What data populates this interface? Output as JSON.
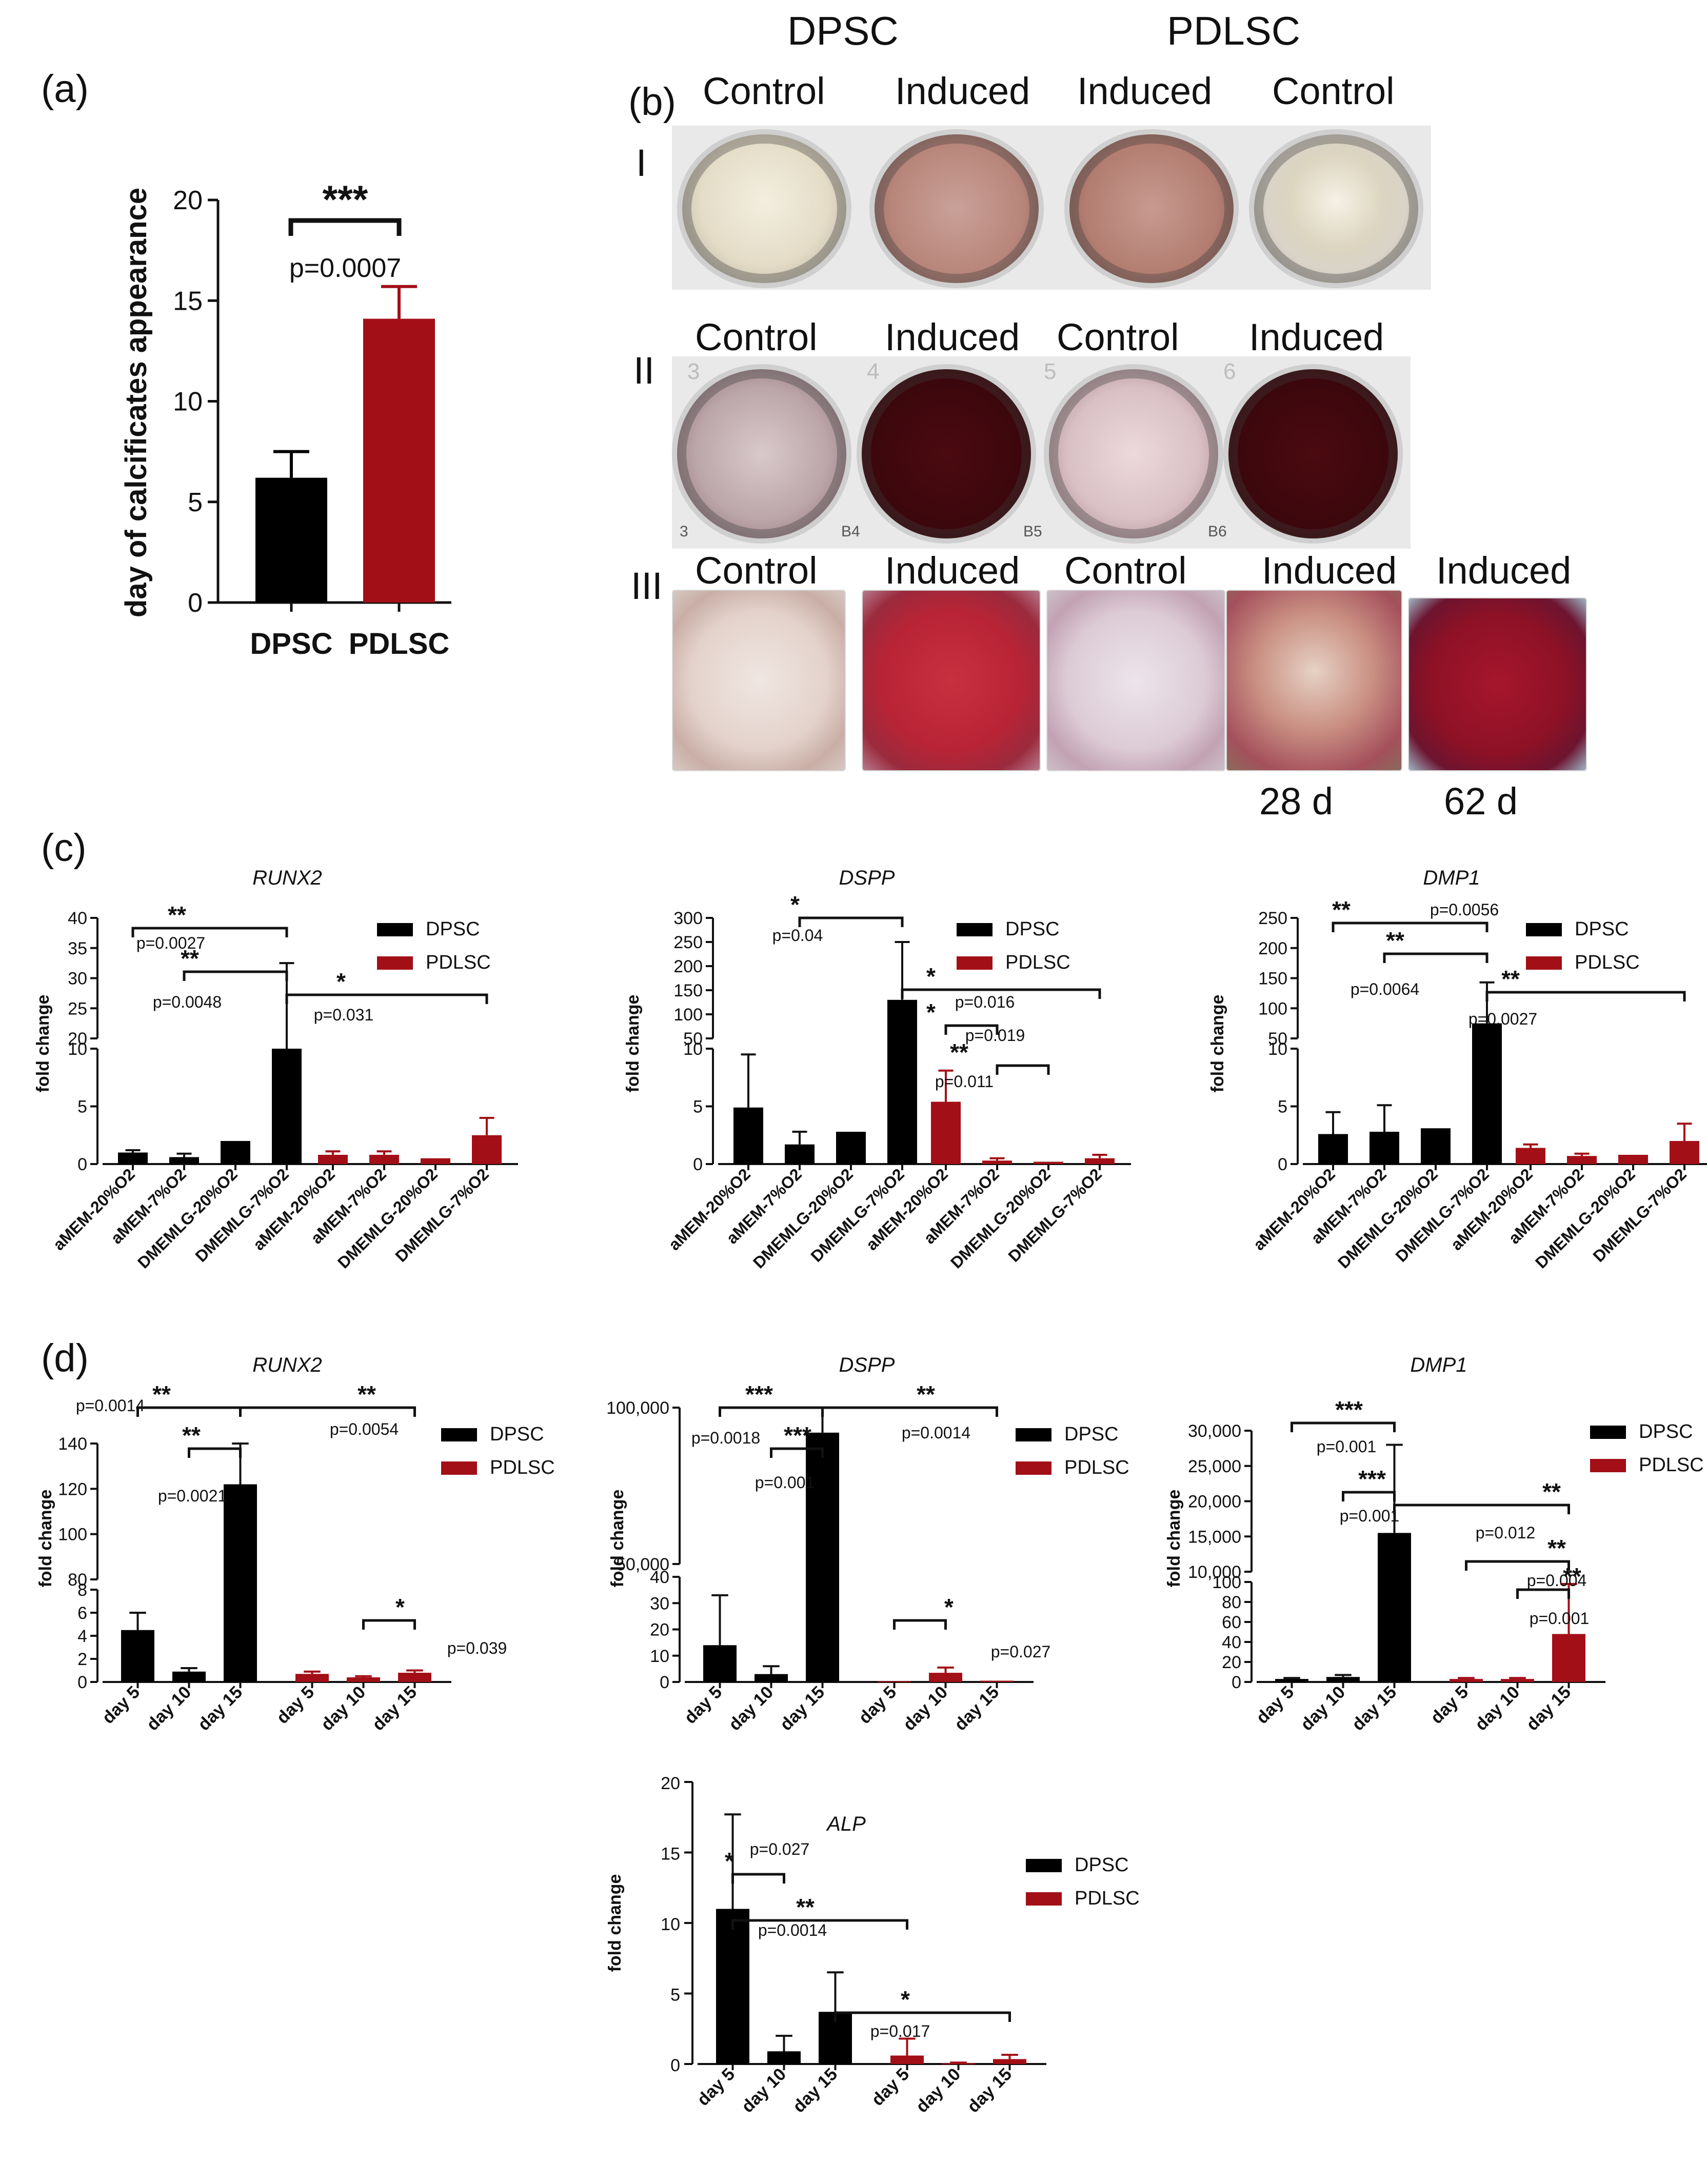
{
  "colors": {
    "dpsc": "#000000",
    "pdlsc": "#a30f17"
  },
  "panel_letters": {
    "a": "(a)",
    "b": "(b)",
    "c": "(c)",
    "d": "(d)"
  },
  "photo_panel": {
    "top_headers": [
      "DPSC",
      "PDLSC"
    ],
    "row_numerals": [
      "I",
      "II",
      "III"
    ],
    "row_I_labels": [
      "Control",
      "Induced",
      "Induced",
      "Control"
    ],
    "row_II_labels": [
      "Control",
      "Induced",
      "Control",
      "Induced"
    ],
    "row_III_labels": [
      "Control",
      "Induced",
      "Control",
      "Induced",
      "Induced"
    ],
    "row_III_days": [
      "28 d",
      "62 d"
    ],
    "plate_marks": [
      "3",
      "4",
      "5",
      "6",
      "3",
      "B4",
      "B5",
      "B6"
    ]
  },
  "chart_data": [
    {
      "id": "a",
      "type": "bar",
      "title": "",
      "ylabel": "day of calcificates appearance",
      "categories": [
        "DPSC",
        "PDLSC"
      ],
      "values": [
        6.2,
        14.1
      ],
      "errors": [
        1.3,
        1.6
      ],
      "ylim": [
        0,
        20
      ],
      "yticks": [
        "0",
        "5",
        "10",
        "15",
        "20"
      ],
      "annotations": [
        {
          "from": 0,
          "to": 1,
          "stars": "***",
          "p": "p=0.0007"
        }
      ]
    },
    {
      "id": "c-runx2",
      "type": "bar",
      "title": "RUNX2",
      "ylabel": "fold change",
      "legend": [
        "DPSC",
        "PDLSC"
      ],
      "categories": [
        "aMEM-20%O2",
        "aMEM-7%O2",
        "DMEMLG-20%O2",
        "DMEMLG-7%O2",
        "aMEM-20%O2",
        "aMEM-7%O2",
        "DMEMLG-20%O2",
        "DMEMLG-7%O2"
      ],
      "values": [
        1.0,
        0.6,
        2.0,
        10.0,
        0.8,
        0.8,
        0.5,
        2.5
      ],
      "errors": [
        0.2,
        0.3,
        0,
        22.5,
        0.3,
        0.3,
        0,
        1.5
      ],
      "yticks_low": [
        "0",
        "5",
        "10"
      ],
      "yticks_high": [
        "20",
        "25",
        "30",
        "35",
        "40"
      ],
      "annotations": [
        {
          "from": 0,
          "to": 3,
          "stars": "**",
          "p": "p=0.0027"
        },
        {
          "from": 1,
          "to": 3,
          "stars": "**",
          "p": "p=0.0048"
        },
        {
          "from": 3,
          "to": 7,
          "stars": "*",
          "p": "p=0.031"
        }
      ]
    },
    {
      "id": "c-dspp",
      "type": "bar",
      "title": "DSPP",
      "ylabel": "fold change",
      "legend": [
        "DPSC",
        "PDLSC"
      ],
      "categories": [
        "aMEM-20%O2",
        "aMEM-7%O2",
        "DMEMLG-20%O2",
        "DMEMLG-7%O2",
        "aMEM-20%O2",
        "aMEM-7%O2",
        "DMEMLG-20%O2",
        "DMEMLG-7%O2"
      ],
      "values": [
        4.9,
        1.7,
        2.8,
        130,
        5.4,
        0.3,
        0.2,
        0.5
      ],
      "errors": [
        4.6,
        1.1,
        0,
        120,
        2.7,
        0.2,
        0,
        0.3
      ],
      "yticks_low": [
        "0",
        "5",
        "10"
      ],
      "yticks_high": [
        "50",
        "100",
        "150",
        "200",
        "250",
        "300"
      ],
      "annotations": [
        {
          "from": 1,
          "to": 3,
          "stars": "*",
          "p": "p=0.04"
        },
        {
          "from": 3,
          "to": 7,
          "stars": "*",
          "p": "p=0.016"
        },
        {
          "from": 4,
          "to": 5,
          "stars": "*",
          "p": "p=0.019"
        },
        {
          "from": 5,
          "to": 6,
          "stars": "**",
          "p": "p=0.011"
        }
      ]
    },
    {
      "id": "c-dmp1",
      "type": "bar",
      "title": "DMP1",
      "ylabel": "fold change",
      "legend": [
        "DPSC",
        "PDLSC"
      ],
      "categories": [
        "aMEM-20%O2",
        "aMEM-7%O2",
        "DMEMLG-20%O2",
        "DMEMLG-7%O2",
        "aMEM-20%O2",
        "aMEM-7%O2",
        "DMEMLG-20%O2",
        "DMEMLG-7%O2"
      ],
      "values": [
        2.6,
        2.8,
        3.1,
        75,
        1.4,
        0.7,
        0.8,
        2.0
      ],
      "errors": [
        1.9,
        2.3,
        0,
        68,
        0.3,
        0.2,
        0,
        1.5
      ],
      "yticks_low": [
        "0",
        "5",
        "10"
      ],
      "yticks_high": [
        "50",
        "100",
        "150",
        "200",
        "250"
      ],
      "annotations": [
        {
          "from": 0,
          "to": 3,
          "stars": "**",
          "p": "p=0.0056"
        },
        {
          "from": 1,
          "to": 3,
          "stars": "**",
          "p": "p=0.0064"
        },
        {
          "from": 3,
          "to": 7,
          "stars": "**",
          "p": "p=0.0027"
        }
      ]
    },
    {
      "id": "d-runx2",
      "type": "bar",
      "title": "RUNX2",
      "ylabel": "fold change",
      "legend": [
        "DPSC",
        "PDLSC"
      ],
      "categories": [
        "day 5",
        "day 10",
        "day 15",
        "day 5",
        "day 10",
        "day 15"
      ],
      "values": [
        4.5,
        0.9,
        122,
        0.7,
        0.4,
        0.8
      ],
      "errors": [
        1.5,
        0.3,
        23,
        0.2,
        0.1,
        0.2
      ],
      "yticks_low": [
        "0",
        "2",
        "4",
        "6",
        "8"
      ],
      "yticks_high": [
        "80",
        "100",
        "120",
        "140"
      ],
      "annotations": [
        {
          "from": 0,
          "to": 2,
          "stars": "**",
          "p": "p=0.0014"
        },
        {
          "from": 1,
          "to": 2,
          "stars": "**",
          "p": "p=0.0021"
        },
        {
          "from": 2,
          "to": 5,
          "stars": "**",
          "p": "p=0.0054"
        },
        {
          "from": 4,
          "to": 5,
          "stars": "*",
          "p": "p=0.039"
        }
      ]
    },
    {
      "id": "d-dspp",
      "type": "bar",
      "title": "DSPP",
      "ylabel": "fold change",
      "legend": [
        "DPSC",
        "PDLSC"
      ],
      "categories": [
        "day 5",
        "day 10",
        "day 15",
        "day 5",
        "day 10",
        "day 15"
      ],
      "values": [
        14,
        3,
        92000,
        0.3,
        3.5,
        0.5
      ],
      "errors": [
        19,
        3,
        15000,
        0,
        2,
        0
      ],
      "yticks_low": [
        "0",
        "10",
        "20",
        "30",
        "40"
      ],
      "yticks_high": [
        "50,000",
        "100,000"
      ],
      "annotations": [
        {
          "from": 0,
          "to": 2,
          "stars": "***",
          "p": "p=0.0018"
        },
        {
          "from": 1,
          "to": 2,
          "stars": "***",
          "p": "p=0.001"
        },
        {
          "from": 2,
          "to": 5,
          "stars": "**",
          "p": "p=0.0014"
        },
        {
          "from": 3,
          "to": 4,
          "stars": "*",
          "p": "p=0.027"
        }
      ]
    },
    {
      "id": "d-dmp1",
      "type": "bar",
      "title": "DMP1",
      "ylabel": "fold change",
      "legend": [
        "DPSC",
        "PDLSC"
      ],
      "categories": [
        "day 5",
        "day 10",
        "day 15",
        "day 5",
        "day 10",
        "day 15"
      ],
      "values": [
        3,
        5,
        15500,
        3,
        3,
        48
      ],
      "errors": [
        1,
        2,
        12500,
        1,
        1,
        50
      ],
      "yticks_low": [
        "0",
        "20",
        "40",
        "60",
        "80",
        "100"
      ],
      "yticks_high": [
        "10,000",
        "15,000",
        "20,000",
        "25,000",
        "30,000"
      ],
      "annotations": [
        {
          "from": 0,
          "to": 2,
          "stars": "***",
          "p": "p=0.001"
        },
        {
          "from": 1,
          "to": 2,
          "stars": "***",
          "p": "p=0.001"
        },
        {
          "from": 2,
          "to": 5,
          "stars": "**",
          "p": "p=0.012"
        },
        {
          "from": 3,
          "to": 5,
          "stars": "**",
          "p": "p=0.004"
        },
        {
          "from": 4,
          "to": 5,
          "stars": "**",
          "p": "p=0.001"
        }
      ]
    },
    {
      "id": "d-alp",
      "type": "bar",
      "title": "ALP",
      "ylabel": "fold change",
      "legend": [
        "DPSC",
        "PDLSC"
      ],
      "categories": [
        "day 5",
        "day 10",
        "day 15",
        "day 5",
        "day 10",
        "day 15"
      ],
      "values": [
        11,
        0.9,
        3.7,
        0.6,
        0.05,
        0.35
      ],
      "errors": [
        6.7,
        1.1,
        2.8,
        1.2,
        0.05,
        0.3
      ],
      "ylim": [
        0,
        20
      ],
      "yticks": [
        "0",
        "5",
        "10",
        "15",
        "20"
      ],
      "annotations": [
        {
          "from": 0,
          "to": 1,
          "stars": "*",
          "p": "p=0.027"
        },
        {
          "from": 0,
          "to": 3,
          "stars": "**",
          "p": "p=0.0014"
        },
        {
          "from": 2,
          "to": 5,
          "stars": "*",
          "p": "p=0.017"
        }
      ]
    }
  ]
}
